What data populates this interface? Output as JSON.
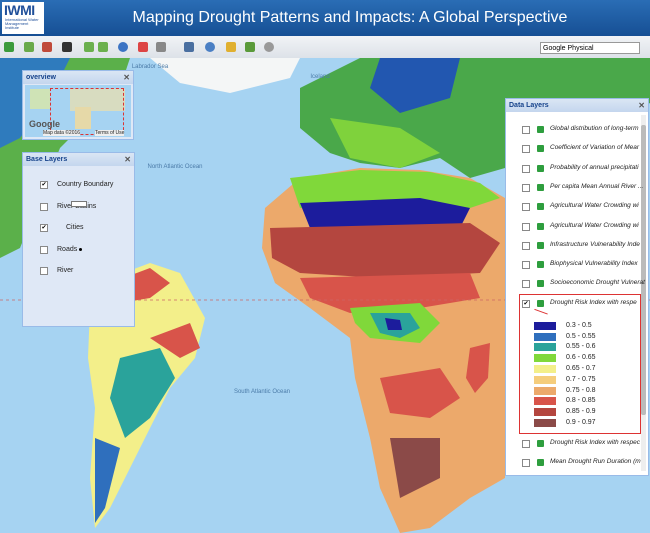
{
  "header": {
    "logo": "IWMI",
    "logo_subtitle": "International Water Management Institute",
    "title": "Mapping Drought Patterns and Impacts: A Global Perspective"
  },
  "toolbar": {
    "basemap": "Google Physical"
  },
  "overview": {
    "title": "overview",
    "logo": "Google",
    "attribution": "Map data ©2016",
    "terms": "Terms of Use"
  },
  "base_layers": {
    "title": "Base Layers",
    "items": [
      {
        "label": "Country Boundary",
        "checked": true
      },
      {
        "label": "River Basins",
        "checked": false
      },
      {
        "label": "Cities",
        "checked": true
      },
      {
        "label": "Roads",
        "checked": false
      },
      {
        "label": "River",
        "checked": false
      }
    ]
  },
  "map_labels": [
    "Labrador Sea",
    "North Atlantic Ocean",
    "South Atlantic Ocean",
    "Iceland"
  ],
  "data_layers": {
    "title": "Data Layers",
    "items": [
      {
        "label": "Global distribution of long-term",
        "checked": false
      },
      {
        "label": "Coefficient of Variation of Mear",
        "checked": false
      },
      {
        "label": "Probability of annual precipitati",
        "checked": false
      },
      {
        "label": "Per capita Mean Annual River ...",
        "checked": false
      },
      {
        "label": "Agricultural Water Crowding wi",
        "checked": false
      },
      {
        "label": "Agricultural Water Crowding wi",
        "checked": false
      },
      {
        "label": "Infrastructure Vulnerability Inde",
        "checked": false
      },
      {
        "label": "Biophysical Vulnerability Index",
        "checked": false
      },
      {
        "label": "Socioeconomic Drought Vulnerat",
        "checked": false
      },
      {
        "label": "Drought Risk Index with respe",
        "checked": true,
        "legend": [
          {
            "label": "0.3 - 0.5",
            "color": "#1c1c9c"
          },
          {
            "label": "0.5 - 0.55",
            "color": "#2f6fbd"
          },
          {
            "label": "0.55 - 0.6",
            "color": "#2aa39b"
          },
          {
            "label": "0.6 - 0.65",
            "color": "#80d83a"
          },
          {
            "label": "0.65 - 0.7",
            "color": "#f3ef8a"
          },
          {
            "label": "0.7 - 0.75",
            "color": "#f5cd7c"
          },
          {
            "label": "0.75 - 0.8",
            "color": "#eca96b"
          },
          {
            "label": "0.8 - 0.85",
            "color": "#d8544a"
          },
          {
            "label": "0.85 - 0.9",
            "color": "#b4463f"
          },
          {
            "label": "0.9 - 0.97",
            "color": "#8b4a48"
          }
        ]
      },
      {
        "label": "Drought Risk Index with respec",
        "checked": false
      },
      {
        "label": "Mean Drought Run Duration (m",
        "checked": false
      }
    ]
  }
}
